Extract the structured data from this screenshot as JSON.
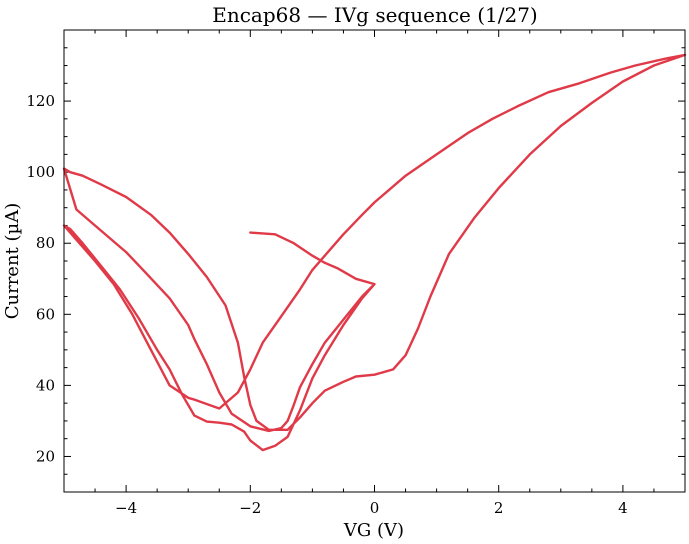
{
  "chart_data": {
    "type": "line",
    "title": "Encap68 — IVg sequence (1/27)",
    "xlabel": "VG (V)",
    "ylabel": "Current (µA)",
    "xlim": [
      -5,
      5
    ],
    "ylim": [
      10,
      140
    ],
    "xticks": [
      -4,
      -2,
      0,
      2,
      4
    ],
    "yticks": [
      20,
      40,
      60,
      80,
      100,
      120
    ],
    "x_minor_step": 0.5,
    "y_minor_step": 5,
    "grid": false,
    "legend": "none",
    "series": [
      {
        "color": "#e03a48",
        "points": [
          [
            0.0,
            68.5
          ],
          [
            -0.2,
            65.0
          ],
          [
            -0.5,
            58.5
          ],
          [
            -0.8,
            52.0
          ],
          [
            -1.0,
            46.0
          ],
          [
            -1.2,
            39.5
          ],
          [
            -1.3,
            34.5
          ],
          [
            -1.4,
            30.0
          ],
          [
            -1.5,
            28.0
          ],
          [
            -1.7,
            27.2
          ],
          [
            -2.0,
            28.5
          ],
          [
            -2.3,
            32.0
          ],
          [
            -2.5,
            38.0
          ],
          [
            -2.7,
            46.0
          ],
          [
            -2.9,
            53.0
          ],
          [
            -3.0,
            57.0
          ],
          [
            -3.3,
            64.5
          ],
          [
            -3.7,
            72.0
          ],
          [
            -4.0,
            77.5
          ],
          [
            -4.5,
            85.0
          ],
          [
            -4.8,
            89.5
          ],
          [
            -5.0,
            101.0
          ],
          [
            -4.9,
            100.0
          ],
          [
            -4.7,
            99.0
          ],
          [
            -4.4,
            96.5
          ],
          [
            -4.0,
            93.0
          ],
          [
            -3.6,
            88.0
          ],
          [
            -3.3,
            83.0
          ],
          [
            -3.0,
            77.0
          ],
          [
            -2.7,
            70.5
          ],
          [
            -2.4,
            62.5
          ],
          [
            -2.2,
            52.0
          ],
          [
            -2.1,
            42.5
          ],
          [
            -2.0,
            34.5
          ],
          [
            -1.9,
            30.0
          ],
          [
            -1.7,
            27.5
          ],
          [
            -1.4,
            27.5
          ],
          [
            -1.2,
            31.0
          ],
          [
            -1.0,
            35.0
          ],
          [
            -0.8,
            38.5
          ],
          [
            -0.5,
            41.0
          ],
          [
            -0.3,
            42.5
          ],
          [
            0.0,
            43.0
          ],
          [
            0.3,
            44.5
          ],
          [
            0.5,
            48.5
          ],
          [
            0.7,
            56.0
          ],
          [
            0.9,
            65.0
          ],
          [
            1.2,
            77.0
          ],
          [
            1.6,
            87.0
          ],
          [
            2.0,
            95.5
          ],
          [
            2.5,
            105.0
          ],
          [
            3.0,
            113.0
          ],
          [
            3.5,
            119.5
          ],
          [
            4.0,
            125.5
          ],
          [
            4.5,
            130.0
          ],
          [
            5.0,
            133.0
          ],
          [
            4.7,
            132.0
          ],
          [
            4.2,
            130.0
          ],
          [
            3.8,
            128.0
          ],
          [
            3.3,
            125.0
          ],
          [
            2.8,
            122.5
          ],
          [
            2.3,
            118.5
          ],
          [
            1.9,
            115.0
          ],
          [
            1.5,
            111.0
          ],
          [
            1.0,
            105.0
          ],
          [
            0.5,
            99.0
          ],
          [
            0.0,
            91.5
          ],
          [
            -0.2,
            88.0
          ],
          [
            -0.5,
            82.5
          ],
          [
            -1.0,
            72.5
          ],
          [
            -1.2,
            67.0
          ],
          [
            -1.5,
            59.5
          ],
          [
            -1.8,
            52.0
          ],
          [
            -2.0,
            44.5
          ],
          [
            -2.2,
            38.0
          ],
          [
            -2.5,
            33.5
          ],
          [
            -2.9,
            36.0
          ],
          [
            -3.0,
            36.5
          ],
          [
            -3.3,
            40.0
          ],
          [
            -3.6,
            50.0
          ],
          [
            -3.9,
            60.0
          ],
          [
            -4.2,
            68.5
          ],
          [
            -4.5,
            75.0
          ],
          [
            -4.8,
            81.0
          ],
          [
            -5.0,
            85.0
          ],
          [
            -4.9,
            84.0
          ],
          [
            -4.7,
            80.0
          ],
          [
            -4.4,
            73.5
          ],
          [
            -4.1,
            67.0
          ],
          [
            -3.8,
            59.0
          ],
          [
            -3.5,
            50.0
          ],
          [
            -3.3,
            44.5
          ],
          [
            -3.1,
            37.5
          ],
          [
            -2.9,
            31.5
          ],
          [
            -2.7,
            29.8
          ],
          [
            -2.5,
            29.5
          ],
          [
            -2.3,
            29.0
          ],
          [
            -2.1,
            27.0
          ],
          [
            -2.0,
            24.5
          ],
          [
            -1.8,
            21.8
          ],
          [
            -1.6,
            23.0
          ],
          [
            -1.4,
            25.5
          ],
          [
            -1.2,
            33.0
          ],
          [
            -1.0,
            42.0
          ],
          [
            -0.8,
            48.5
          ],
          [
            -0.5,
            57.0
          ],
          [
            -0.2,
            64.5
          ],
          [
            0.0,
            68.5
          ],
          [
            -0.3,
            70.0
          ],
          [
            -0.6,
            73.0
          ],
          [
            -0.8,
            74.5
          ],
          [
            -1.0,
            76.5
          ],
          [
            -1.3,
            80.0
          ],
          [
            -1.6,
            82.5
          ],
          [
            -2.0,
            83.0
          ]
        ]
      }
    ]
  }
}
